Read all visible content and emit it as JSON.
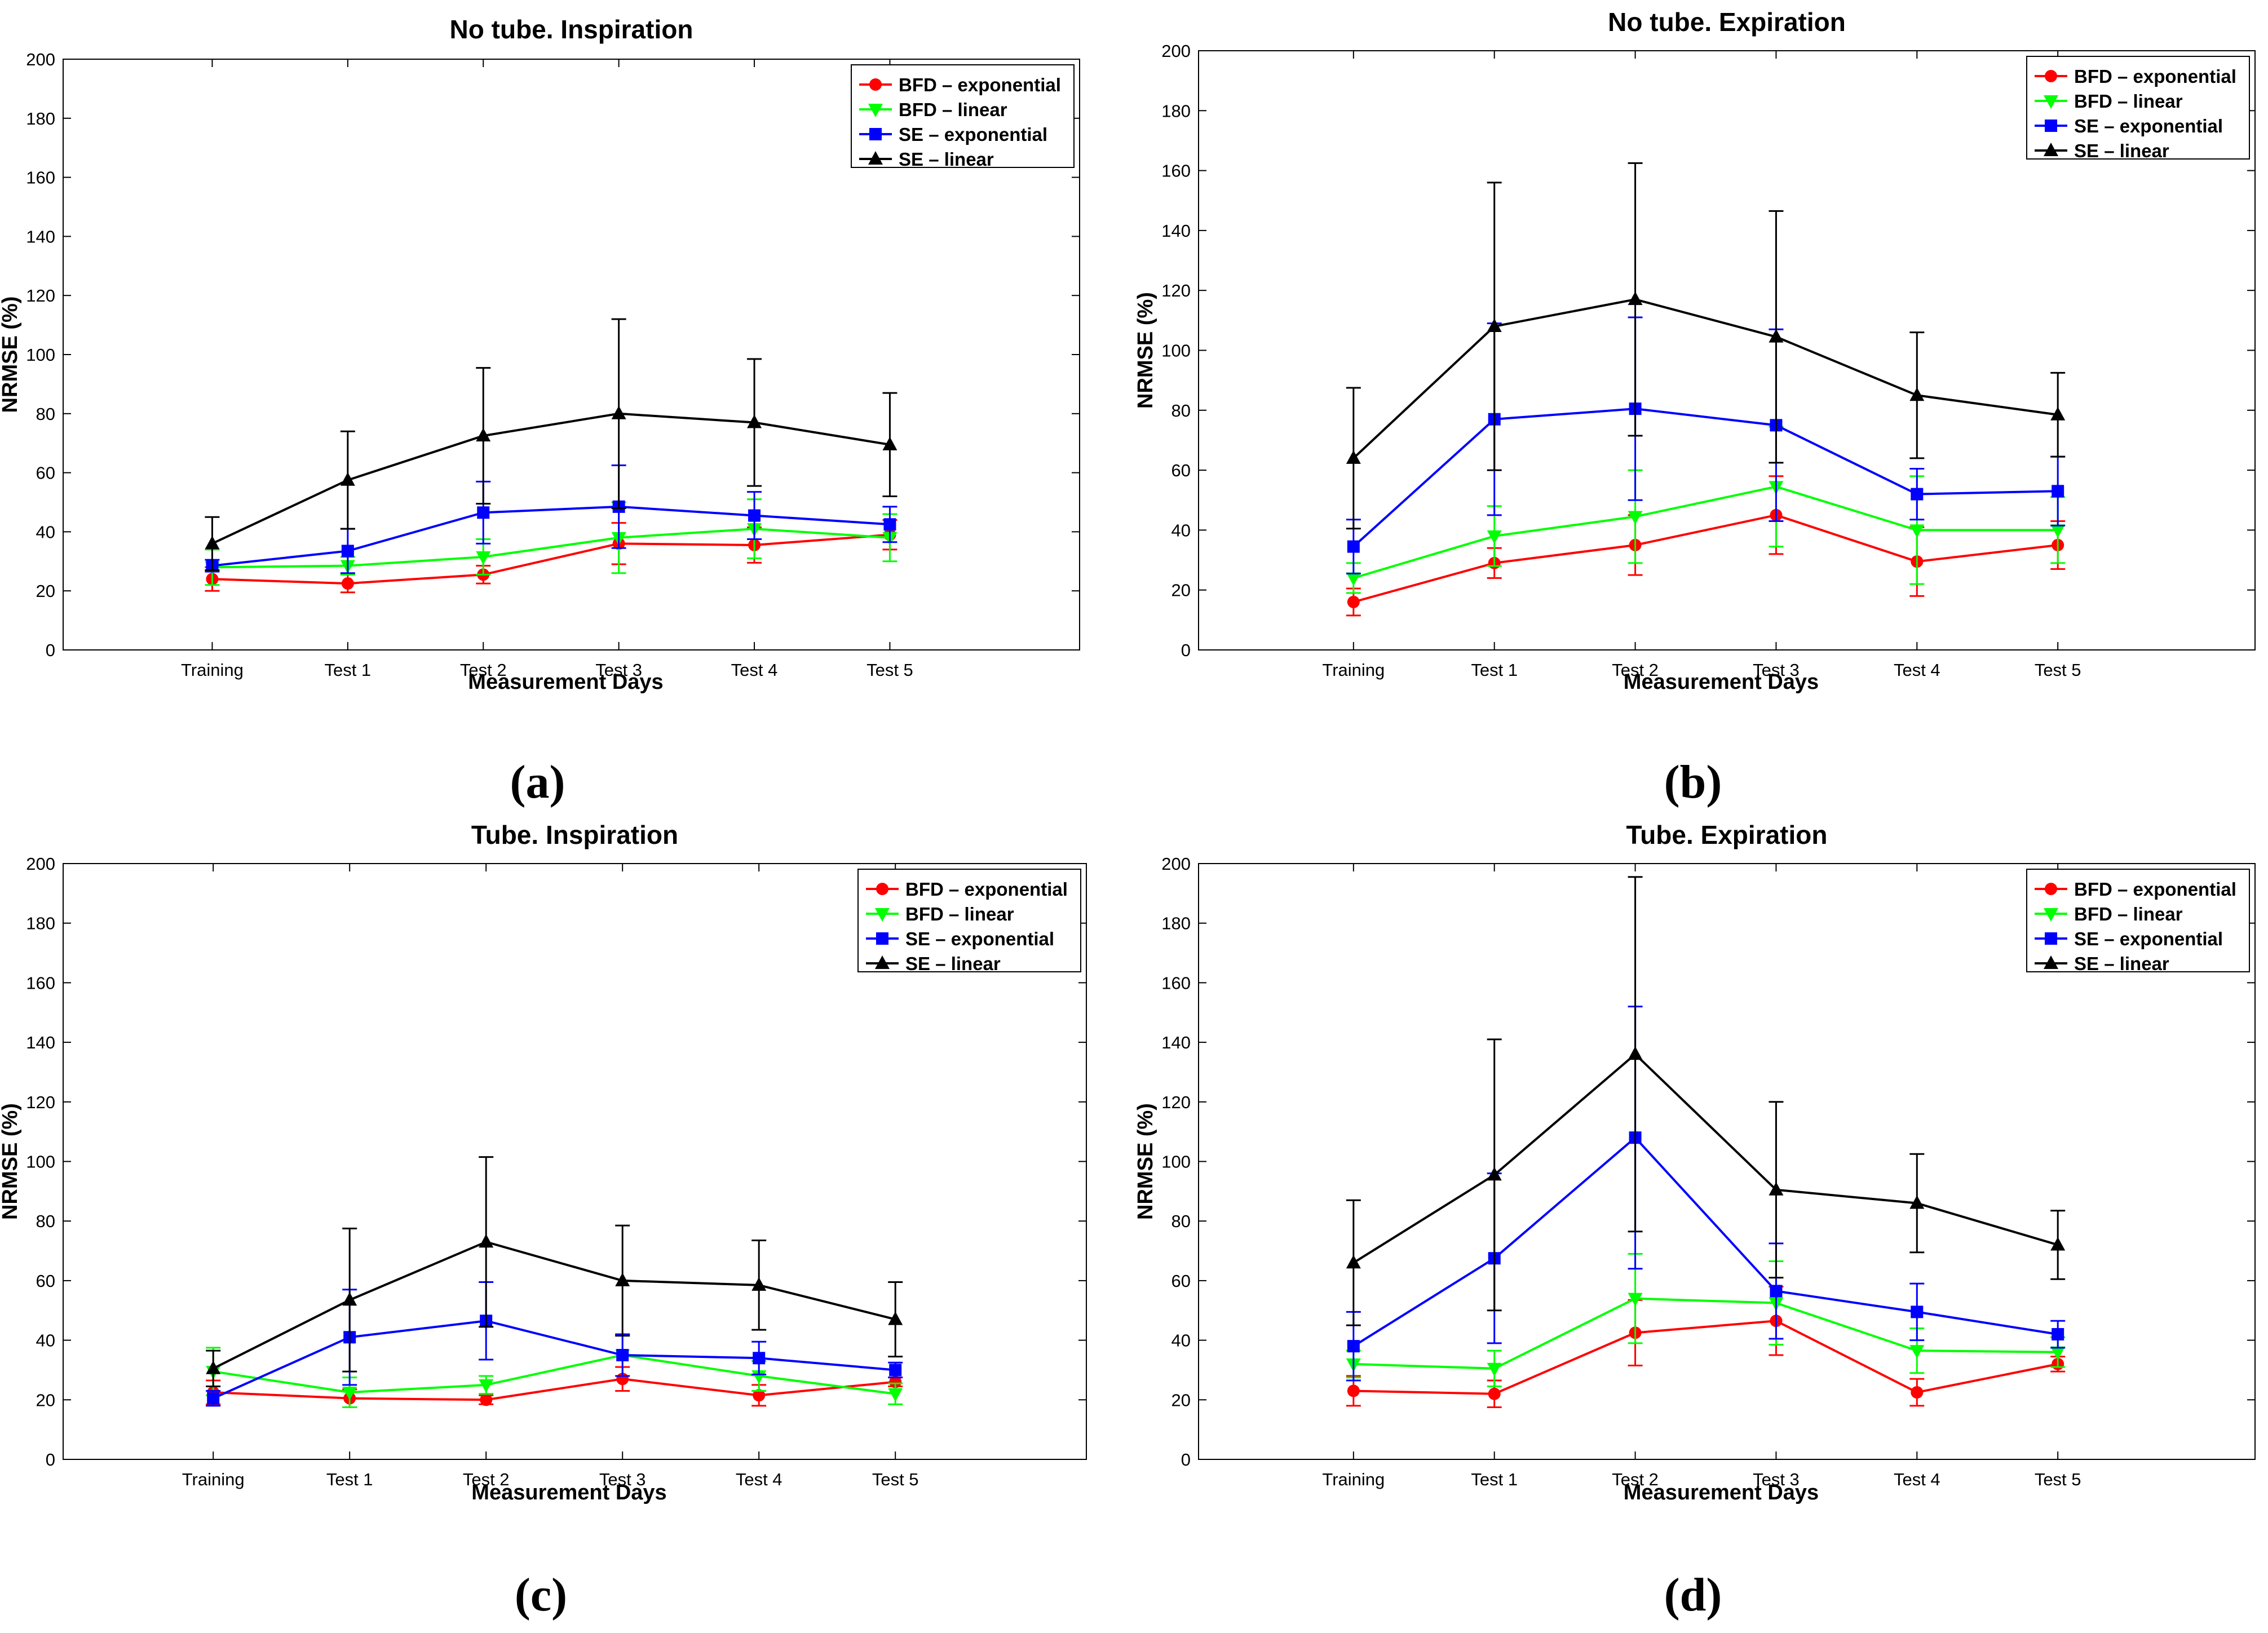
{
  "chart_data": [
    {
      "type": "line",
      "panel": "(a)",
      "panel_label": "a",
      "title": "No tube. Inspiration",
      "xlabel": "Measurement Days",
      "ylabel": "NRMSE (%)",
      "ylim": [
        0,
        200
      ],
      "yticks": [
        0,
        20,
        40,
        60,
        80,
        100,
        120,
        140,
        160,
        180,
        200
      ],
      "categories": [
        "Training",
        "Test 1",
        "Test 2",
        "Test 3",
        "Test 4",
        "Test 5"
      ],
      "legend_position": "top-right",
      "series": [
        {
          "name": "BFD – exponential",
          "color": "#ff0000",
          "marker": "circle",
          "values": [
            24,
            22.5,
            25.5,
            36,
            35.5,
            39
          ],
          "errors": [
            4,
            3,
            3,
            7,
            6,
            5
          ]
        },
        {
          "name": "BFD – linear",
          "color": "#00ff00",
          "marker": "triangle-down",
          "values": [
            28,
            28.5,
            31.5,
            38,
            41,
            38
          ],
          "errors": [
            6,
            3,
            6,
            12,
            10,
            8
          ]
        },
        {
          "name": "SE – exponential",
          "color": "#0000ff",
          "marker": "square",
          "values": [
            28.5,
            33.5,
            46.5,
            48.5,
            45.5,
            42.5
          ],
          "errors": [
            2,
            7.5,
            10.5,
            14,
            8,
            6
          ]
        },
        {
          "name": "SE – linear",
          "color": "#000000",
          "marker": "triangle-up",
          "values": [
            36,
            57.5,
            72.5,
            80,
            77,
            69.5
          ],
          "errors": [
            9,
            16.5,
            23,
            32,
            21.5,
            17.5
          ]
        }
      ]
    },
    {
      "type": "line",
      "panel": "(b)",
      "panel_label": "b",
      "title": "No tube. Expiration",
      "xlabel": "Measurement Days",
      "ylabel": "NRMSE (%)",
      "ylim": [
        0,
        200
      ],
      "yticks": [
        0,
        20,
        40,
        60,
        80,
        100,
        120,
        140,
        160,
        180,
        200
      ],
      "categories": [
        "Training",
        "Test 1",
        "Test 2",
        "Test 3",
        "Test 4",
        "Test 5"
      ],
      "legend_position": "top-right",
      "series": [
        {
          "name": "BFD – exponential",
          "color": "#ff0000",
          "marker": "circle",
          "values": [
            16,
            29,
            35,
            45,
            29.5,
            35
          ],
          "errors": [
            4.5,
            5,
            10,
            13,
            11.5,
            8
          ]
        },
        {
          "name": "BFD – linear",
          "color": "#00ff00",
          "marker": "triangle-down",
          "values": [
            24,
            38,
            44.5,
            54.5,
            40,
            40
          ],
          "errors": [
            5,
            10,
            15.5,
            20,
            18,
            11
          ]
        },
        {
          "name": "SE – exponential",
          "color": "#0000ff",
          "marker": "square",
          "values": [
            34.5,
            77,
            80.5,
            75,
            52,
            53
          ],
          "errors": [
            9,
            32,
            30.5,
            32,
            8.5,
            11.5
          ]
        },
        {
          "name": "SE – linear",
          "color": "#000000",
          "marker": "triangle-up",
          "values": [
            64,
            108,
            117,
            104.5,
            85,
            78.5
          ],
          "errors": [
            23.5,
            48,
            45.5,
            42,
            21,
            14
          ]
        }
      ]
    },
    {
      "type": "line",
      "panel": "(c)",
      "panel_label": "c",
      "title": "Tube. Inspiration",
      "xlabel": "Measurement Days",
      "ylabel": "NRMSE (%)",
      "ylim": [
        0,
        200
      ],
      "yticks": [
        0,
        20,
        40,
        60,
        80,
        100,
        120,
        140,
        160,
        180,
        200
      ],
      "categories": [
        "Training",
        "Test 1",
        "Test 2",
        "Test 3",
        "Test 4",
        "Test 5"
      ],
      "legend_position": "top-right",
      "series": [
        {
          "name": "BFD – exponential",
          "color": "#ff0000",
          "marker": "circle",
          "values": [
            22.5,
            20.5,
            20,
            27,
            21.5,
            26
          ],
          "errors": [
            4,
            3,
            1.5,
            4,
            3.5,
            1.5
          ]
        },
        {
          "name": "BFD – linear",
          "color": "#00ff00",
          "marker": "triangle-down",
          "values": [
            29.5,
            22.5,
            25,
            35,
            28,
            22
          ],
          "errors": [
            8,
            5,
            3,
            7,
            5,
            3.5
          ]
        },
        {
          "name": "SE – exponential",
          "color": "#0000ff",
          "marker": "square",
          "values": [
            20.5,
            41,
            46.5,
            35,
            34,
            30
          ],
          "errors": [
            2.5,
            16,
            13,
            7,
            5.5,
            2.5
          ]
        },
        {
          "name": "SE – linear",
          "color": "#000000",
          "marker": "triangle-up",
          "values": [
            30.5,
            53.5,
            73,
            60,
            58.5,
            47
          ],
          "errors": [
            6,
            24,
            28.5,
            18.5,
            15,
            12.5
          ]
        }
      ]
    },
    {
      "type": "line",
      "panel": "(d)",
      "panel_label": "d",
      "title": "Tube. Expiration",
      "xlabel": "Measurement Days",
      "ylabel": "NRMSE (%)",
      "ylim": [
        0,
        200
      ],
      "yticks": [
        0,
        20,
        40,
        60,
        80,
        100,
        120,
        140,
        160,
        180,
        200
      ],
      "categories": [
        "Training",
        "Test 1",
        "Test 2",
        "Test 3",
        "Test 4",
        "Test 5"
      ],
      "legend_position": "top-right",
      "series": [
        {
          "name": "BFD – exponential",
          "color": "#ff0000",
          "marker": "circle",
          "values": [
            23,
            22,
            42.5,
            46.5,
            22.5,
            32
          ],
          "errors": [
            5,
            4.5,
            11,
            11.5,
            4.5,
            2.5
          ]
        },
        {
          "name": "BFD – linear",
          "color": "#00ff00",
          "marker": "triangle-down",
          "values": [
            32,
            30.5,
            54,
            52.5,
            36.5,
            36
          ],
          "errors": [
            4.5,
            6,
            15,
            14,
            7.5,
            5
          ]
        },
        {
          "name": "SE – exponential",
          "color": "#0000ff",
          "marker": "square",
          "values": [
            38,
            67.5,
            108,
            56.5,
            49.5,
            42
          ],
          "errors": [
            11.5,
            28.5,
            44,
            16,
            9.5,
            4.5
          ]
        },
        {
          "name": "SE – linear",
          "color": "#000000",
          "marker": "triangle-up",
          "values": [
            66,
            95.5,
            136,
            90.5,
            86,
            72
          ],
          "errors": [
            21,
            45.5,
            59.5,
            29.5,
            16.5,
            11.5
          ]
        }
      ]
    }
  ]
}
